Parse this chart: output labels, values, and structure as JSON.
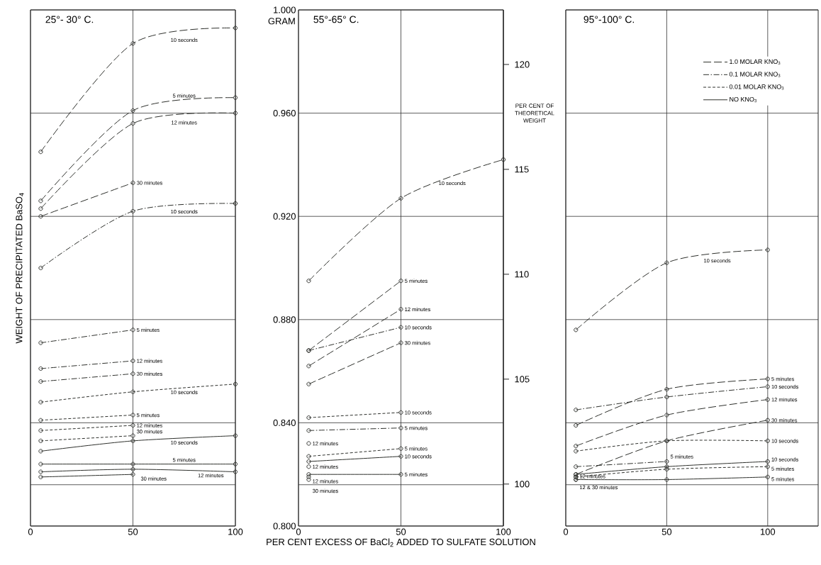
{
  "chart_data": [
    {
      "type": "line",
      "title": "25°- 30° C.",
      "ylabel": "WEIGHT OF PRECIPITATED BaSO$_{4}$",
      "xlim": [
        0,
        100
      ],
      "xticks": [
        0,
        50,
        100
      ],
      "ylim": [
        0.8,
        1.0
      ],
      "yticks": [
        0.8,
        0.84,
        0.88,
        0.92,
        0.96,
        1.0
      ],
      "tick_labels": "x",
      "grid": true,
      "marker": "circle",
      "ref_lines": [
        {
          "axis": "y",
          "value": 0.816
        }
      ],
      "series": [
        {
          "name": "10 seconds",
          "line_style": "longdashed",
          "color": "#2e302c",
          "x": [
            5,
            50,
            100
          ],
          "values": [
            0.945,
            0.987,
            0.993
          ]
        },
        {
          "name": "5 minutes",
          "line_style": "longdashed",
          "color": "#2e302c",
          "x": [
            5,
            50,
            100
          ],
          "values": [
            0.926,
            0.961,
            0.966
          ]
        },
        {
          "name": "12 minutes",
          "line_style": "longdashed",
          "color": "#2e302c",
          "x": [
            5,
            50,
            100
          ],
          "values": [
            0.923,
            0.956,
            0.96
          ]
        },
        {
          "name": "30 minutes",
          "line_style": "longdashed",
          "color": "#2e302c",
          "x": [
            5,
            50
          ],
          "values": [
            0.92,
            0.933
          ]
        },
        {
          "name": "10 seconds",
          "line_style": "dashdotted",
          "color": "#2e302c",
          "x": [
            5,
            50,
            100
          ],
          "values": [
            0.9,
            0.922,
            0.925
          ]
        },
        {
          "name": "5 minutes",
          "line_style": "dashdotted",
          "color": "#2e302c",
          "x": [
            5,
            50
          ],
          "values": [
            0.871,
            0.876
          ]
        },
        {
          "name": "12 minutes",
          "line_style": "dashdotted",
          "color": "#2e302c",
          "x": [
            5,
            50
          ],
          "values": [
            0.861,
            0.864
          ]
        },
        {
          "name": "30 minutes",
          "line_style": "dashdotted",
          "color": "#2e302c",
          "x": [
            5,
            50
          ],
          "values": [
            0.856,
            0.859
          ]
        },
        {
          "name": "10 seconds",
          "line_style": "dashed",
          "color": "#2e302c",
          "x": [
            5,
            50,
            100
          ],
          "values": [
            0.848,
            0.852,
            0.855
          ]
        },
        {
          "name": "5 minutes",
          "line_style": "dashed",
          "color": "#2e302c",
          "x": [
            5,
            50
          ],
          "values": [
            0.841,
            0.843
          ]
        },
        {
          "name": "12 minutes",
          "line_style": "dashed",
          "color": "#2e302c",
          "x": [
            5,
            50
          ],
          "values": [
            0.837,
            0.839
          ]
        },
        {
          "name": "30 minutes",
          "line_style": "dashed",
          "color": "#2e302c",
          "x": [
            5,
            50
          ],
          "values": [
            0.833,
            0.835
          ]
        },
        {
          "name": "10 seconds",
          "line_style": "solid",
          "color": "#2e302c",
          "x": [
            5,
            50,
            100
          ],
          "values": [
            0.829,
            0.833,
            0.835
          ]
        },
        {
          "name": "5 minutes",
          "line_style": "solid",
          "color": "#2e302c",
          "x": [
            5,
            50,
            100
          ],
          "values": [
            0.824,
            0.824,
            0.824
          ]
        },
        {
          "name": "12 minutes",
          "line_style": "solid",
          "color": "#2e302c",
          "x": [
            5,
            50,
            100
          ],
          "values": [
            0.821,
            0.822,
            0.821
          ]
        },
        {
          "name": "30 minutes",
          "line_style": "solid",
          "color": "#2e302c",
          "x": [
            5,
            50
          ],
          "values": [
            0.819,
            0.82
          ]
        }
      ]
    },
    {
      "type": "line",
      "title": "55°-65° C.",
      "xlabel": "PER CENT EXCESS OF BaCl$_{2}$ ADDED TO SULFATE SOLUTION",
      "annotations": [
        "GRAM"
      ],
      "xlim": [
        0,
        100
      ],
      "xticks": [
        0,
        50,
        100
      ],
      "ylim": [
        0.8,
        1.0
      ],
      "yticks": [
        {
          "value": 0.8,
          "label": "0.800"
        },
        {
          "value": 0.84,
          "label": "0.840"
        },
        {
          "value": 0.88,
          "label": "0.880"
        },
        {
          "value": 0.92,
          "label": "0.920"
        },
        {
          "value": 0.96,
          "label": "0.960"
        },
        {
          "value": 1.0,
          "label": "1.000"
        }
      ],
      "y2label": "PER CENT OF THEORETICAL WEIGHT",
      "y2lim": [
        98.0,
        122.6
      ],
      "y2ticks": [
        100,
        105,
        110,
        115,
        120
      ],
      "grid": true,
      "marker": "circle",
      "ref_lines": [
        {
          "axis": "y",
          "value": 0.816
        }
      ],
      "series": [
        {
          "name": "10 seconds",
          "line_style": "longdashed",
          "color": "#2e302c",
          "x": [
            5,
            50,
            100
          ],
          "values": [
            0.895,
            0.927,
            0.942
          ]
        },
        {
          "name": "5 minutes",
          "line_style": "longdashed",
          "color": "#2e302c",
          "x": [
            5,
            50
          ],
          "values": [
            0.868,
            0.895
          ]
        },
        {
          "name": "12 minutes",
          "line_style": "longdashed",
          "color": "#2e302c",
          "x": [
            5,
            50
          ],
          "values": [
            0.862,
            0.884
          ]
        },
        {
          "name": "30 minutes",
          "line_style": "longdashed",
          "color": "#2e302c",
          "x": [
            5,
            50
          ],
          "values": [
            0.855,
            0.871
          ]
        },
        {
          "name": "10 seconds",
          "line_style": "dashdotted",
          "color": "#2e302c",
          "x": [
            5,
            50
          ],
          "values": [
            0.868,
            0.877
          ]
        },
        {
          "name": "5 minutes",
          "line_style": "dashdotted",
          "color": "#2e302c",
          "x": [
            5,
            50
          ],
          "values": [
            0.837,
            0.838
          ]
        },
        {
          "name": "12 minutes",
          "line_style": "dashdotted",
          "color": "#2e302c",
          "x": [
            5
          ],
          "values": [
            0.832
          ]
        },
        {
          "name": "10 seconds",
          "line_style": "dashed",
          "color": "#2e302c",
          "x": [
            5,
            50
          ],
          "values": [
            0.842,
            0.844
          ]
        },
        {
          "name": "5 minutes",
          "line_style": "dashed",
          "color": "#2e302c",
          "x": [
            5,
            50
          ],
          "values": [
            0.827,
            0.83
          ]
        },
        {
          "name": "12 minutes",
          "line_style": "dashed",
          "color": "#2e302c",
          "x": [
            5
          ],
          "values": [
            0.823
          ]
        },
        {
          "name": "10 seconds",
          "line_style": "solid",
          "color": "#2e302c",
          "x": [
            5,
            50
          ],
          "values": [
            0.825,
            0.827
          ]
        },
        {
          "name": "5 minutes",
          "line_style": "solid",
          "color": "#2e302c",
          "x": [
            5,
            50
          ],
          "values": [
            0.82,
            0.82
          ]
        },
        {
          "name": "12 minutes",
          "line_style": "solid",
          "color": "#2e302c",
          "x": [
            5
          ],
          "values": [
            0.819
          ]
        },
        {
          "name": "30 minutes",
          "line_style": "solid",
          "color": "#2e302c",
          "x": [
            5
          ],
          "values": [
            0.818
          ]
        }
      ]
    },
    {
      "type": "line",
      "title": "95°-100° C.",
      "xlim": [
        0,
        125
      ],
      "xticks": [
        0,
        50,
        100
      ],
      "ylim": [
        0.8,
        1.0
      ],
      "yticks": [
        0.8,
        0.84,
        0.88,
        0.92,
        0.96,
        1.0
      ],
      "tick_labels": "x",
      "grid": true,
      "marker": "circle",
      "legend": "top right",
      "ref_lines": [
        {
          "axis": "y",
          "value": 0.816
        }
      ],
      "series": [
        {
          "name": "10 seconds",
          "line_style": "longdashed",
          "color": "#2e302c",
          "x": [
            5,
            50,
            100
          ],
          "values": [
            0.876,
            0.902,
            0.907
          ]
        },
        {
          "name": "5 minutes",
          "line_style": "longdashed",
          "color": "#2e302c",
          "x": [
            5,
            50,
            100
          ],
          "values": [
            0.839,
            0.853,
            0.857
          ]
        },
        {
          "name": "12 minutes",
          "line_style": "longdashed",
          "color": "#2e302c",
          "x": [
            5,
            50,
            100
          ],
          "values": [
            0.831,
            0.843,
            0.849
          ]
        },
        {
          "name": "30 minutes",
          "line_style": "longdashed",
          "color": "#2e302c",
          "x": [
            5,
            50,
            100
          ],
          "values": [
            0.82,
            0.833,
            0.841
          ]
        },
        {
          "name": "10 seconds",
          "line_style": "dashdotted",
          "color": "#2e302c",
          "x": [
            5,
            50,
            100
          ],
          "values": [
            0.845,
            0.85,
            0.854
          ]
        },
        {
          "name": "5 minutes",
          "line_style": "dashdotted",
          "color": "#2e302c",
          "x": [
            5,
            50
          ],
          "values": [
            0.823,
            0.825
          ]
        },
        {
          "name": "10 seconds",
          "line_style": "dashed",
          "color": "#2e302c",
          "x": [
            5,
            50,
            100
          ],
          "values": [
            0.829,
            0.833,
            0.833
          ]
        },
        {
          "name": "5 minutes",
          "line_style": "dashed",
          "color": "#2e302c",
          "x": [
            5,
            50,
            100
          ],
          "values": [
            0.819,
            0.822,
            0.823
          ]
        },
        {
          "name": "12 minutes",
          "line_style": "dashed",
          "color": "#2e302c",
          "x": [
            5
          ],
          "values": [
            0.819
          ]
        },
        {
          "name": "10 seconds",
          "line_style": "solid",
          "color": "#2e302c",
          "x": [
            5,
            50,
            100
          ],
          "values": [
            0.82,
            0.823,
            0.825
          ]
        },
        {
          "name": "5 minutes",
          "line_style": "solid",
          "color": "#2e302c",
          "x": [
            5,
            50,
            100
          ],
          "values": [
            0.818,
            0.818,
            0.819
          ]
        },
        {
          "name": "12 & 30 minutes",
          "line_style": "solid",
          "color": "#2e302c",
          "x": [
            5
          ],
          "values": [
            0.818
          ]
        },
        {
          "name": "1.0 MOLAR KNO$_{3}$",
          "line_style": "longdashed",
          "color": "#2e302c",
          "values": [
            null
          ]
        },
        {
          "name": "0.1 MOLAR KNO$_{3}$",
          "line_style": "dashdotted",
          "color": "#2e302c",
          "values": [
            null
          ]
        },
        {
          "name": "0.01 MOLAR KNO$_{3}$",
          "line_style": "dashed",
          "color": "#2e302c",
          "values": [
            null
          ]
        },
        {
          "name": "NO KNO$_{3}$",
          "line_style": "solid",
          "color": "#2e302c",
          "values": [
            null
          ]
        }
      ]
    }
  ]
}
